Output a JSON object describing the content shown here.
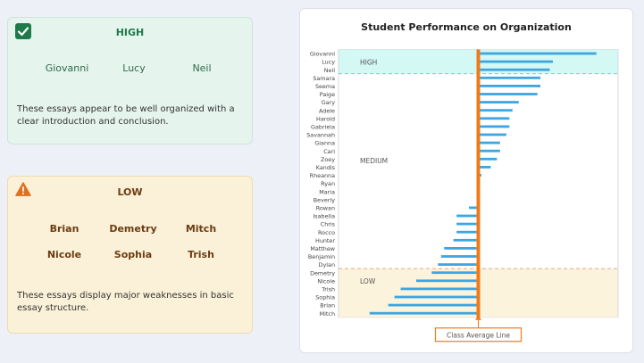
{
  "high_card": {
    "title": "HIGH",
    "names": [
      "Giovanni",
      "Lucy",
      "Neil"
    ],
    "description": "These essays appear to be well organized with a clear introduction and conclusion.",
    "icon": "check-icon",
    "color": "#1e7a4a"
  },
  "low_card": {
    "title": "LOW",
    "names": [
      "Brian",
      "Demetry",
      "Mitch",
      "Nicole",
      "Sophia",
      "Trish"
    ],
    "description": "These essays display major weaknesses in basic essay structure.",
    "icon": "warning-icon",
    "color": "#e07020"
  },
  "chart_data": {
    "type": "bar",
    "orientation": "horizontal",
    "title": "Student Performance on Organization",
    "categories": [
      "Giovanni",
      "Lucy",
      "Neil",
      "Samara",
      "Seema",
      "Paige",
      "Gary",
      "Adele",
      "Harold",
      "Gabriela",
      "Savannah",
      "Gianna",
      "Cari",
      "Zoey",
      "Kandis",
      "Rheanna",
      "Ryan",
      "Maria",
      "Beverly",
      "Rowan",
      "Isabella",
      "Chris",
      "Rocco",
      "Hunter",
      "Matthew",
      "Benjamin",
      "Dylan",
      "Demetry",
      "Nicole",
      "Trish",
      "Sophia",
      "Brian",
      "Mitch"
    ],
    "values": [
      38,
      24,
      23,
      20,
      20,
      19,
      13,
      11,
      10,
      10,
      9,
      7,
      7,
      6,
      4,
      1,
      0.5,
      0.5,
      0,
      -3,
      -7,
      -7,
      -7,
      -8,
      -11,
      -12,
      -13,
      -15,
      -20,
      -25,
      -27,
      -29,
      -35
    ],
    "xlim": [
      -45,
      45
    ],
    "series_color": "#3da5e0",
    "regions": [
      {
        "label": "HIGH",
        "from": "Giovanni",
        "to": "Neil",
        "color": "#d4f8f4"
      },
      {
        "label": "MEDIUM",
        "from": "Samara",
        "to": "Dylan",
        "color": "#ffffff"
      },
      {
        "label": "LOW",
        "from": "Demetry",
        "to": "Mitch",
        "color": "#fbf3dc"
      }
    ],
    "reference_line": {
      "label": "Class Average Line",
      "value": 0,
      "color": "#f07a1a"
    },
    "grid": false
  }
}
